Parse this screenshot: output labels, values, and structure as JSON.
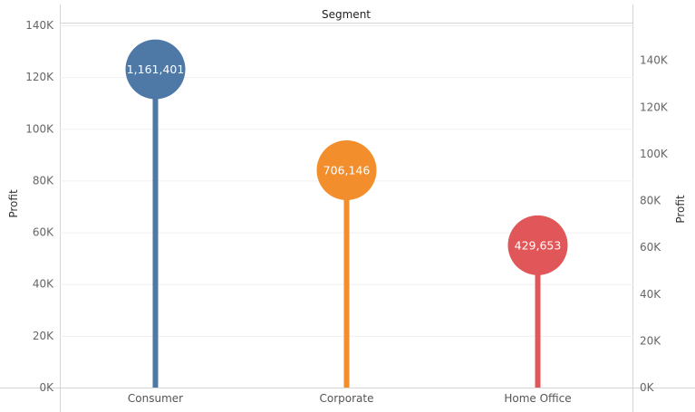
{
  "chart_data": {
    "type": "lollipop",
    "header": "Segment",
    "ylabel_left": "Profit",
    "ylabel_right": "Profit",
    "categories": [
      "Consumer",
      "Corporate",
      "Home Office"
    ],
    "values": [
      123000,
      84000,
      55000
    ],
    "labels": [
      "1,161,401",
      "706,146",
      "429,653"
    ],
    "colors": [
      "#4e79a7",
      "#f28e2b",
      "#e15759"
    ],
    "left_axis": {
      "min": 0,
      "max": 140000,
      "ticks": [
        0,
        20000,
        40000,
        60000,
        80000,
        100000,
        120000,
        140000
      ],
      "tick_labels": [
        "0K",
        "20K",
        "40K",
        "60K",
        "80K",
        "100K",
        "120K",
        "140K"
      ]
    },
    "right_axis": {
      "min": 0,
      "max": 155000,
      "ticks": [
        0,
        20000,
        40000,
        60000,
        80000,
        100000,
        120000,
        140000
      ],
      "tick_labels": [
        "0K",
        "20K",
        "40K",
        "60K",
        "80K",
        "100K",
        "120K",
        "140K"
      ]
    },
    "grid": true,
    "legend": "none"
  }
}
